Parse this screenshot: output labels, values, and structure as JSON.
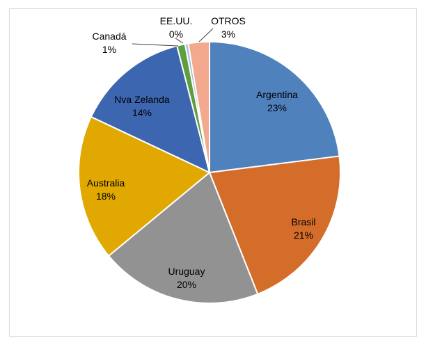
{
  "chart_data": {
    "type": "pie",
    "title": "",
    "start_angle_deg": 0,
    "direction": "clockwise",
    "legend": "none",
    "slices": [
      {
        "label": "Argentina",
        "value": 23,
        "pct_label": "23%",
        "color": "#4f81bd"
      },
      {
        "label": "Brasil",
        "value": 21,
        "pct_label": "21%",
        "color": "#d46c2a"
      },
      {
        "label": "Uruguay",
        "value": 20,
        "pct_label": "20%",
        "color": "#929292"
      },
      {
        "label": "Australia",
        "value": 18,
        "pct_label": "18%",
        "color": "#e0a800"
      },
      {
        "label": "Nva Zelanda",
        "value": 14,
        "pct_label": "14%",
        "color": "#3d66b0"
      },
      {
        "label": "Canadá",
        "value": 1,
        "pct_label": "1%",
        "color": "#5d9e3e"
      },
      {
        "label": "EE.UU.",
        "value": 0.4,
        "pct_label": "0%",
        "color": "#a5bedf"
      },
      {
        "label": "OTROS",
        "value": 2.6,
        "pct_label": "3%",
        "color": "#f3a98e"
      }
    ]
  }
}
